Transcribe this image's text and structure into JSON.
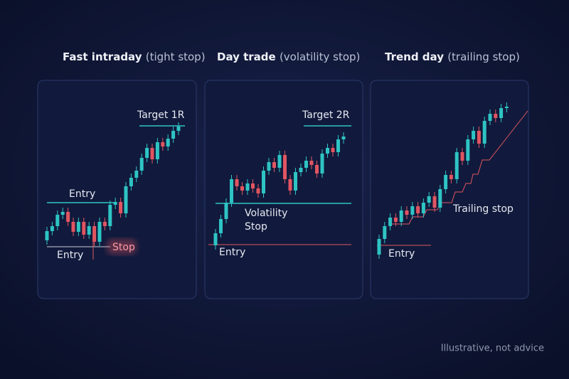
{
  "panels": [
    {
      "title": "Fast intraday",
      "subtitle": "(tight stop)",
      "labels": {
        "target": "Target 1R",
        "entry_top": "Entry",
        "entry_bottom": "Entry",
        "stop": "Stop"
      }
    },
    {
      "title": "Day trade",
      "subtitle": "(volatility stop)",
      "labels": {
        "target": "Target 2R",
        "stop_line1": "Volatility",
        "stop_line2": "Stop",
        "entry": "Entry"
      }
    },
    {
      "title": "Trend day",
      "subtitle": "(trailing stop)",
      "labels": {
        "stop": "Trailing stop",
        "entry": "Entry"
      }
    }
  ],
  "footer": "Illustrative, not advice"
}
